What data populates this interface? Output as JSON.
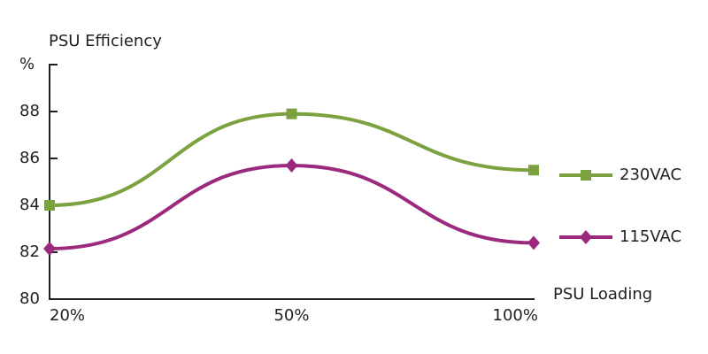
{
  "chart_data": {
    "type": "line",
    "title": "PSU Efficiency",
    "x_label": "PSU Loading",
    "categories": [
      "20%",
      "50%",
      "100%"
    ],
    "series": [
      {
        "name": "230VAC",
        "color": "#7ba23f",
        "marker": "square",
        "values": [
          84.0,
          87.9,
          85.5
        ]
      },
      {
        "name": "115VAC",
        "color": "#9b2a7e",
        "marker": "diamond",
        "values": [
          82.15,
          85.7,
          82.4
        ]
      }
    ],
    "ylim": [
      80,
      90
    ],
    "yticks": [
      80,
      82,
      84,
      86,
      88,
      {
        "value": 90,
        "label": "%"
      }
    ],
    "grid": false,
    "legend": "right"
  }
}
